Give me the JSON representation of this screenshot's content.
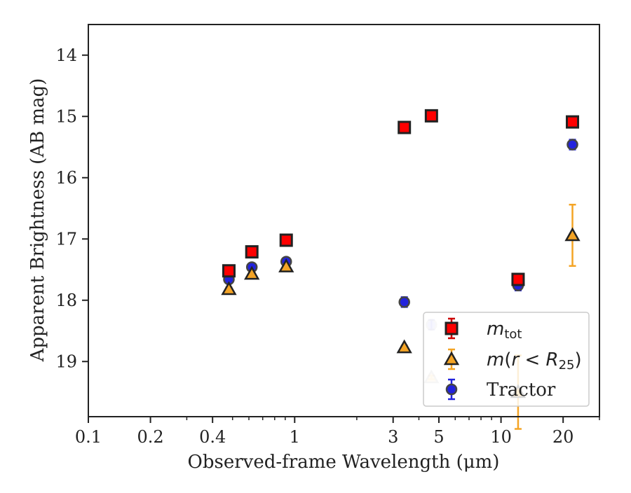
{
  "chart_data": {
    "type": "scatter",
    "xlabel": "Observed-frame Wavelength (μm)",
    "ylabel": "Apparent Brightness (AB mag)",
    "xscale": "log",
    "xlim": [
      0.1,
      30
    ],
    "ylim": [
      19.9,
      13.5
    ],
    "y_inverted": true,
    "x_ticks": [
      {
        "value": 0.1,
        "label": "0.1"
      },
      {
        "value": 0.2,
        "label": "0.2"
      },
      {
        "value": 0.4,
        "label": "0.4"
      },
      {
        "value": 1,
        "label": "1"
      },
      {
        "value": 3,
        "label": "3"
      },
      {
        "value": 5,
        "label": "5"
      },
      {
        "value": 10,
        "label": "10"
      },
      {
        "value": 20,
        "label": "20"
      }
    ],
    "x_minor_ticks": [
      0.3,
      0.5,
      0.6,
      0.7,
      0.8,
      0.9,
      2,
      4,
      6,
      7,
      8,
      9,
      30
    ],
    "y_ticks": [
      14,
      15,
      16,
      17,
      18,
      19
    ],
    "grid": false,
    "legend_position": "lower-right",
    "series": [
      {
        "name": "m_tot",
        "marker": "square",
        "color": "#ff0000",
        "edge_color": "#222222",
        "error_color": "#cc0000",
        "points": [
          {
            "x": 0.48,
            "y": 17.52,
            "err": 0.05,
            "faded": false
          },
          {
            "x": 0.62,
            "y": 17.21,
            "err": 0.05,
            "faded": false
          },
          {
            "x": 0.91,
            "y": 17.02,
            "err": 0.05,
            "faded": false
          },
          {
            "x": 3.4,
            "y": 15.18,
            "err": 0.06,
            "faded": false
          },
          {
            "x": 4.6,
            "y": 14.99,
            "err": 0.06,
            "faded": false
          },
          {
            "x": 12.1,
            "y": 17.66,
            "err": 0.07,
            "faded": false
          },
          {
            "x": 22.2,
            "y": 15.09,
            "err": 0.07,
            "faded": false
          }
        ]
      },
      {
        "name": "m(r<R25)",
        "marker": "triangle",
        "color": "#f4a425",
        "edge_color": "#222222",
        "error_color": "#f4a425",
        "points": [
          {
            "x": 0.48,
            "y": 17.82,
            "err": 0.03,
            "faded": false
          },
          {
            "x": 0.62,
            "y": 17.57,
            "err": 0.03,
            "faded": false
          },
          {
            "x": 0.91,
            "y": 17.45,
            "err": 0.03,
            "faded": false
          },
          {
            "x": 3.4,
            "y": 18.77,
            "err": 0.03,
            "faded": false
          },
          {
            "x": 4.6,
            "y": 19.26,
            "err": 0.03,
            "faded": true
          },
          {
            "x": 12.1,
            "y": 19.5,
            "err": 0.6,
            "faded": false
          },
          {
            "x": 22.2,
            "y": 16.94,
            "err": 0.5,
            "faded": false
          }
        ]
      },
      {
        "name": "Tractor",
        "marker": "circle",
        "color": "#2222dd",
        "edge_color": "#444444",
        "error_color": "#2222dd",
        "points": [
          {
            "x": 0.48,
            "y": 17.66,
            "err": 0.06,
            "faded": false
          },
          {
            "x": 0.62,
            "y": 17.46,
            "err": 0.06,
            "faded": false
          },
          {
            "x": 0.91,
            "y": 17.37,
            "err": 0.06,
            "faded": false
          },
          {
            "x": 3.4,
            "y": 18.03,
            "err": 0.08,
            "faded": false
          },
          {
            "x": 4.6,
            "y": 18.4,
            "err": 0.08,
            "faded": true
          },
          {
            "x": 12.1,
            "y": 17.76,
            "err": 0.08,
            "faded": false
          },
          {
            "x": 22.2,
            "y": 15.46,
            "err": 0.08,
            "faded": false
          }
        ]
      }
    ]
  }
}
